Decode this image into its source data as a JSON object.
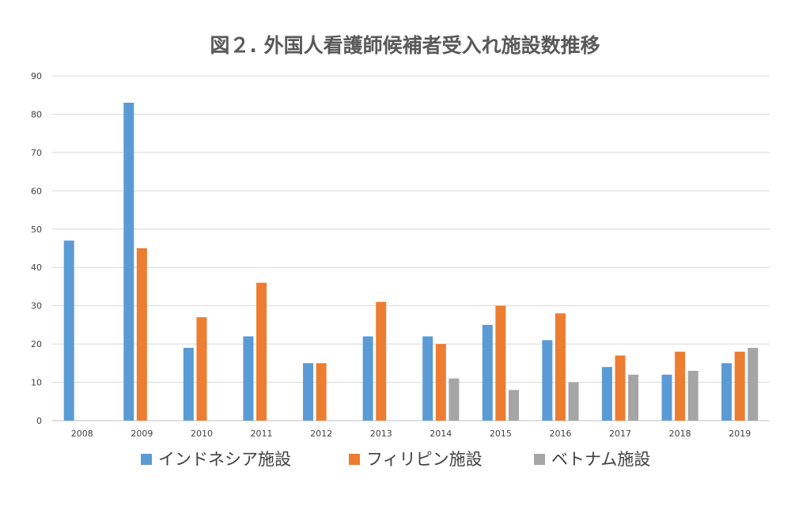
{
  "chart_data": {
    "type": "bar",
    "title": "図２. 外国人看護師候補者受入れ施設数推移",
    "xlabel": "",
    "ylabel": "",
    "ylim": [
      0,
      90
    ],
    "yticks": [
      0,
      10,
      20,
      30,
      40,
      50,
      60,
      70,
      80,
      90
    ],
    "grid": true,
    "legend_position": "bottom",
    "categories": [
      "2008",
      "2009",
      "2010",
      "2011",
      "2012",
      "2013",
      "2014",
      "2015",
      "2016",
      "2017",
      "2018",
      "2019"
    ],
    "series": [
      {
        "name": "インドネシア施設",
        "color": "#5b9bd5",
        "values": [
          47,
          83,
          19,
          22,
          15,
          22,
          22,
          25,
          21,
          14,
          12,
          15
        ]
      },
      {
        "name": "フィリピン施設",
        "color": "#ed7d31",
        "values": [
          null,
          45,
          27,
          36,
          15,
          31,
          20,
          30,
          28,
          17,
          18,
          18
        ]
      },
      {
        "name": "ベトナム施設",
        "color": "#a5a5a5",
        "values": [
          null,
          null,
          null,
          null,
          null,
          null,
          11,
          8,
          10,
          12,
          13,
          19
        ]
      }
    ]
  }
}
